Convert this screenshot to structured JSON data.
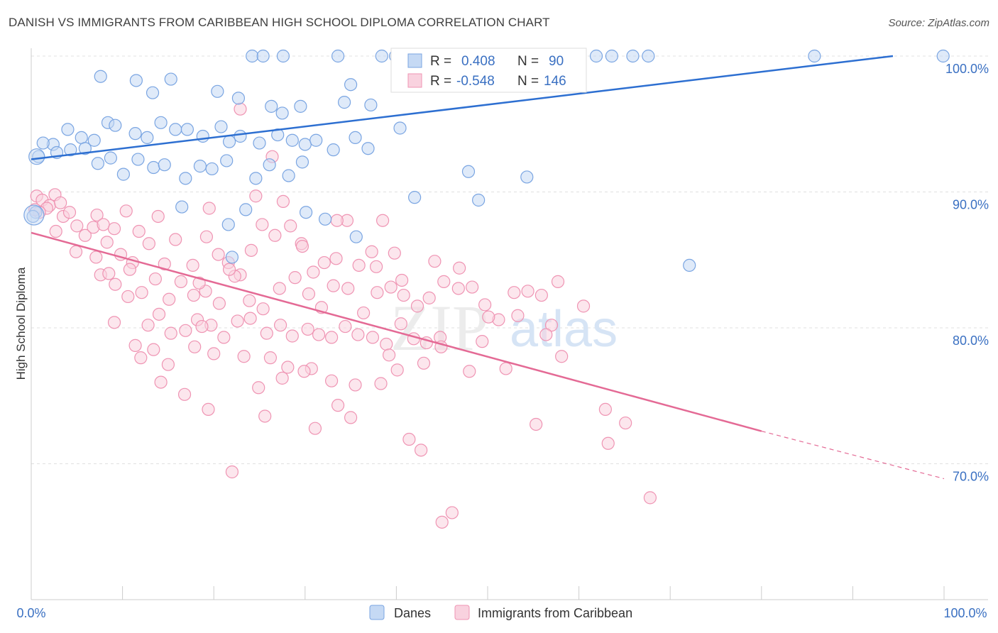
{
  "title": "DANISH VS IMMIGRANTS FROM CARIBBEAN HIGH SCHOOL DIPLOMA CORRELATION CHART",
  "source": "Source: ZipAtlas.com",
  "watermark": {
    "zip": "ZIP",
    "atlas": "atlas"
  },
  "colors": {
    "danes": "#7aa5e2",
    "danes_fill": "#c5d9f4",
    "danes_line": "#2d6fd1",
    "caribbean": "#ef94b3",
    "caribbean_fill": "#f9d2df",
    "caribbean_line": "#e46a95",
    "tick_text": "#3a70c2",
    "grid": "#e0e0e0"
  },
  "stats": {
    "danes": {
      "r_label": "R =",
      "r_value": "0.408",
      "n_label": "N =",
      "n_value": "90"
    },
    "caribbean": {
      "r_label": "R =",
      "r_value": "-0.548",
      "n_label": "N =",
      "n_value": "146"
    }
  },
  "chart_data": {
    "type": "scatter",
    "title": "DANISH VS IMMIGRANTS FROM CARIBBEAN HIGH SCHOOL DIPLOMA CORRELATION CHART",
    "xlabel": "",
    "ylabel": "High School Diploma",
    "xlim": [
      0,
      100
    ],
    "ylim": [
      60,
      102
    ],
    "x_tick_labels": [
      "0.0%",
      "100.0%"
    ],
    "y_ticks": [
      70,
      80,
      90,
      100
    ],
    "y_tick_labels": [
      "70.0%",
      "80.0%",
      "90.0%",
      "100.0%"
    ],
    "grid": true,
    "legend_position": "bottom",
    "series": [
      {
        "name": "Danes",
        "regression": {
          "x": [
            0,
            94.4
          ],
          "y": [
            92.4,
            100.0
          ]
        },
        "points": [
          [
            24.2,
            100
          ],
          [
            25.4,
            100
          ],
          [
            27.6,
            100
          ],
          [
            33.6,
            100
          ],
          [
            38.4,
            100
          ],
          [
            39.9,
            100
          ],
          [
            42.6,
            100
          ],
          [
            43.6,
            100
          ],
          [
            45.3,
            100
          ],
          [
            51.6,
            100
          ],
          [
            52.5,
            100
          ],
          [
            61.9,
            100
          ],
          [
            63.6,
            100
          ],
          [
            65.9,
            100
          ],
          [
            67.6,
            100
          ],
          [
            85.8,
            100
          ],
          [
            99.9,
            100
          ],
          [
            7.6,
            98.5
          ],
          [
            11.5,
            98.2
          ],
          [
            13.3,
            97.3
          ],
          [
            15.3,
            98.3
          ],
          [
            20.4,
            97.4
          ],
          [
            22.7,
            96.9
          ],
          [
            26.3,
            96.3
          ],
          [
            27.5,
            95.8
          ],
          [
            29.5,
            96.3
          ],
          [
            34.3,
            96.6
          ],
          [
            35.0,
            97.9
          ],
          [
            37.2,
            96.4
          ],
          [
            40.4,
            94.7
          ],
          [
            2.4,
            93.5
          ],
          [
            4.0,
            94.6
          ],
          [
            5.5,
            94.0
          ],
          [
            6.9,
            93.8
          ],
          [
            8.4,
            95.1
          ],
          [
            9.2,
            94.9
          ],
          [
            11.4,
            94.3
          ],
          [
            12.7,
            94.0
          ],
          [
            14.2,
            95.1
          ],
          [
            15.8,
            94.6
          ],
          [
            17.1,
            94.6
          ],
          [
            18.8,
            94.1
          ],
          [
            20.8,
            94.8
          ],
          [
            21.7,
            93.7
          ],
          [
            22.9,
            94.1
          ],
          [
            25.0,
            93.6
          ],
          [
            27.0,
            94.2
          ],
          [
            28.6,
            93.8
          ],
          [
            30.0,
            93.5
          ],
          [
            31.2,
            93.8
          ],
          [
            33.1,
            93.1
          ],
          [
            35.5,
            94.0
          ],
          [
            36.9,
            93.2
          ],
          [
            0.8,
            92.6
          ],
          [
            1.3,
            93.6
          ],
          [
            2.8,
            92.9
          ],
          [
            4.3,
            93.1
          ],
          [
            5.9,
            93.2
          ],
          [
            7.3,
            92.1
          ],
          [
            8.7,
            92.5
          ],
          [
            10.1,
            91.3
          ],
          [
            11.7,
            92.4
          ],
          [
            13.4,
            91.8
          ],
          [
            14.6,
            92.0
          ],
          [
            16.9,
            91.0
          ],
          [
            18.5,
            91.9
          ],
          [
            19.8,
            91.7
          ],
          [
            21.4,
            92.3
          ],
          [
            24.6,
            91.0
          ],
          [
            26.1,
            92.0
          ],
          [
            28.2,
            91.2
          ],
          [
            29.7,
            92.2
          ],
          [
            16.5,
            88.9
          ],
          [
            21.6,
            87.6
          ],
          [
            23.5,
            88.7
          ],
          [
            30.1,
            88.5
          ],
          [
            32.2,
            88.0
          ],
          [
            35.6,
            86.7
          ],
          [
            42.0,
            89.6
          ],
          [
            49.0,
            89.4
          ],
          [
            0.5,
            88.5
          ],
          [
            0.2,
            88.2
          ],
          [
            22.0,
            85.2
          ],
          [
            47.9,
            91.5
          ],
          [
            54.3,
            91.1
          ],
          [
            72.1,
            84.6
          ]
        ]
      },
      {
        "name": "Immigrants from Caribbean",
        "regression": {
          "x": [
            0,
            80.0
          ],
          "y": [
            87.0,
            72.4
          ]
        },
        "regression_dashed": {
          "x": [
            80.0,
            100.0
          ],
          "y": [
            72.4,
            68.9
          ]
        },
        "points": [
          [
            0.6,
            89.7
          ],
          [
            1.2,
            89.4
          ],
          [
            2.0,
            89.0
          ],
          [
            2.6,
            89.8
          ],
          [
            3.2,
            89.2
          ],
          [
            1.7,
            88.8
          ],
          [
            0.9,
            88.5
          ],
          [
            0.4,
            88.7
          ],
          [
            2.7,
            87.1
          ],
          [
            3.5,
            88.2
          ],
          [
            4.2,
            88.5
          ],
          [
            5.0,
            87.5
          ],
          [
            5.9,
            86.8
          ],
          [
            6.8,
            87.4
          ],
          [
            7.2,
            88.3
          ],
          [
            7.9,
            87.6
          ],
          [
            8.3,
            86.3
          ],
          [
            9.1,
            87.3
          ],
          [
            10.4,
            88.6
          ],
          [
            11.8,
            87.1
          ],
          [
            4.9,
            85.6
          ],
          [
            7.1,
            85.2
          ],
          [
            9.8,
            85.4
          ],
          [
            11.1,
            84.8
          ],
          [
            12.9,
            86.2
          ],
          [
            14.6,
            84.7
          ],
          [
            15.8,
            86.5
          ],
          [
            17.7,
            84.6
          ],
          [
            19.2,
            86.7
          ],
          [
            20.5,
            85.4
          ],
          [
            21.6,
            84.8
          ],
          [
            22.9,
            83.9
          ],
          [
            24.1,
            85.7
          ],
          [
            25.3,
            87.6
          ],
          [
            26.7,
            86.8
          ],
          [
            28.4,
            87.5
          ],
          [
            29.6,
            86.2
          ],
          [
            30.9,
            84.1
          ],
          [
            32.1,
            84.8
          ],
          [
            33.4,
            85.1
          ],
          [
            34.6,
            87.9
          ],
          [
            35.9,
            84.6
          ],
          [
            37.3,
            85.6
          ],
          [
            38.5,
            87.9
          ],
          [
            7.6,
            83.9
          ],
          [
            9.2,
            83.2
          ],
          [
            10.6,
            82.3
          ],
          [
            12.1,
            82.6
          ],
          [
            13.6,
            83.6
          ],
          [
            15.1,
            82.1
          ],
          [
            16.4,
            83.4
          ],
          [
            17.8,
            82.4
          ],
          [
            19.1,
            82.7
          ],
          [
            20.6,
            81.8
          ],
          [
            22.3,
            83.8
          ],
          [
            23.9,
            82.0
          ],
          [
            25.4,
            81.4
          ],
          [
            27.2,
            82.9
          ],
          [
            28.9,
            83.7
          ],
          [
            30.4,
            82.5
          ],
          [
            31.8,
            81.5
          ],
          [
            33.1,
            83.1
          ],
          [
            34.7,
            82.9
          ],
          [
            36.4,
            81.1
          ],
          [
            37.9,
            82.6
          ],
          [
            39.4,
            83.0
          ],
          [
            40.8,
            82.4
          ],
          [
            42.3,
            81.6
          ],
          [
            43.6,
            82.2
          ],
          [
            45.2,
            83.4
          ],
          [
            46.8,
            82.9
          ],
          [
            48.3,
            83.0
          ],
          [
            49.7,
            81.7
          ],
          [
            51.2,
            80.6
          ],
          [
            52.9,
            82.6
          ],
          [
            54.4,
            82.7
          ],
          [
            55.9,
            82.4
          ],
          [
            57.7,
            83.4
          ],
          [
            9.1,
            80.4
          ],
          [
            11.4,
            78.7
          ],
          [
            12.8,
            80.2
          ],
          [
            14.0,
            81.0
          ],
          [
            15.3,
            79.6
          ],
          [
            16.9,
            79.8
          ],
          [
            18.2,
            80.6
          ],
          [
            19.7,
            80.2
          ],
          [
            21.1,
            79.3
          ],
          [
            22.6,
            80.5
          ],
          [
            24.0,
            80.7
          ],
          [
            25.8,
            79.6
          ],
          [
            27.3,
            80.2
          ],
          [
            28.6,
            79.4
          ],
          [
            30.3,
            79.9
          ],
          [
            31.5,
            79.5
          ],
          [
            32.9,
            79.3
          ],
          [
            34.4,
            80.1
          ],
          [
            35.8,
            79.5
          ],
          [
            37.4,
            79.3
          ],
          [
            38.9,
            78.8
          ],
          [
            40.5,
            80.3
          ],
          [
            41.9,
            79.2
          ],
          [
            43.3,
            78.9
          ],
          [
            44.8,
            79.3
          ],
          [
            12.0,
            77.8
          ],
          [
            13.4,
            78.4
          ],
          [
            15.0,
            77.3
          ],
          [
            17.9,
            78.6
          ],
          [
            20.0,
            78.1
          ],
          [
            23.3,
            77.9
          ],
          [
            26.2,
            77.8
          ],
          [
            28.1,
            77.1
          ],
          [
            30.7,
            77.0
          ],
          [
            32.9,
            76.1
          ],
          [
            35.5,
            75.8
          ],
          [
            38.3,
            75.9
          ],
          [
            40.1,
            76.9
          ],
          [
            43.0,
            77.4
          ],
          [
            48.0,
            76.8
          ],
          [
            52.0,
            77.0
          ],
          [
            14.2,
            76.0
          ],
          [
            16.8,
            75.1
          ],
          [
            24.9,
            75.6
          ],
          [
            27.5,
            76.3
          ],
          [
            29.9,
            76.8
          ],
          [
            33.6,
            74.3
          ],
          [
            39.2,
            78.0
          ],
          [
            44.9,
            78.6
          ],
          [
            49.4,
            79.0
          ],
          [
            57.0,
            80.2
          ],
          [
            60.5,
            81.6
          ],
          [
            62.9,
            74.0
          ],
          [
            65.1,
            73.0
          ],
          [
            19.4,
            74.0
          ],
          [
            25.6,
            73.5
          ],
          [
            31.1,
            72.6
          ],
          [
            35.0,
            73.4
          ],
          [
            41.4,
            71.8
          ],
          [
            42.7,
            71.0
          ],
          [
            55.3,
            72.9
          ],
          [
            63.2,
            71.5
          ],
          [
            22.0,
            69.4
          ],
          [
            46.1,
            66.4
          ],
          [
            45.0,
            65.7
          ],
          [
            67.8,
            67.5
          ],
          [
            19.5,
            88.8
          ],
          [
            24.6,
            89.7
          ],
          [
            27.6,
            89.3
          ],
          [
            29.7,
            86.0
          ],
          [
            33.5,
            87.9
          ],
          [
            37.8,
            84.5
          ],
          [
            40.6,
            83.5
          ],
          [
            44.2,
            84.9
          ],
          [
            46.9,
            84.4
          ],
          [
            50.1,
            80.8
          ],
          [
            53.3,
            80.9
          ],
          [
            56.4,
            79.5
          ],
          [
            58.1,
            77.9
          ],
          [
            8.5,
            84.0
          ],
          [
            10.8,
            84.3
          ],
          [
            18.7,
            80.1
          ],
          [
            26.4,
            92.6
          ],
          [
            22.9,
            96.1
          ],
          [
            13.9,
            88.2
          ],
          [
            18.4,
            83.3
          ],
          [
            21.7,
            84.3
          ],
          [
            39.8,
            85.5
          ]
        ]
      }
    ]
  },
  "bottom_legend": [
    "Danes",
    "Immigrants from Caribbean"
  ]
}
